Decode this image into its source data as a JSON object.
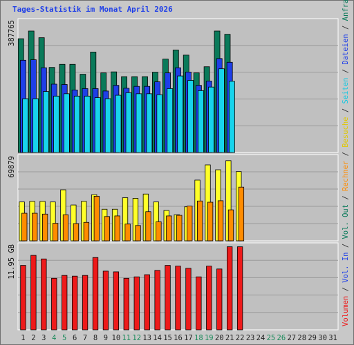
{
  "chart_data": {
    "type": "bar",
    "title": "Tages-Statistik im Monat April 2026",
    "days": [
      "1",
      "2",
      "3",
      "4",
      "5",
      "6",
      "7",
      "8",
      "9",
      "10",
      "11",
      "12",
      "13",
      "14",
      "15",
      "16",
      "17",
      "18",
      "19",
      "20",
      "21",
      "22",
      "23",
      "24",
      "25",
      "26",
      "27",
      "28",
      "29",
      "30",
      "31"
    ],
    "weekend_days": [
      "4",
      "5",
      "11",
      "12",
      "18",
      "19",
      "25",
      "26"
    ],
    "panels": [
      {
        "name": "hits-files-pages",
        "max_label": "387765",
        "ymax": 387765,
        "series": [
          {
            "name": "Anfragen",
            "color": "#0a7a5a",
            "values": [
              333000,
              355500,
              336000,
              249000,
              258000,
              258000,
              229000,
              294000,
              233000,
              236000,
              222000,
              222000,
              222000,
              235000,
              273500,
              300000,
              285000,
              233000,
              251000,
              355500,
              346000,
              null,
              null,
              null,
              null,
              null,
              null,
              null,
              null,
              null,
              null
            ]
          },
          {
            "name": "Dateien",
            "color": "#1f3fe8",
            "values": [
              270000,
              271500,
              248000,
              200000,
              199000,
              183000,
              187000,
              187000,
              180000,
              196500,
              188000,
              193500,
              193500,
              207000,
              233000,
              248000,
              235500,
              196500,
              209000,
              275000,
              264000,
              null,
              null,
              null,
              null,
              null,
              null,
              null,
              null,
              null,
              null
            ]
          },
          {
            "name": "Seiten",
            "color": "#18d4ec",
            "values": [
              157500,
              157500,
              178500,
              165000,
              172000,
              165000,
              165000,
              160500,
              157500,
              167500,
              175000,
              172000,
              172000,
              169000,
              187000,
              224000,
              211000,
              181000,
              191500,
              245000,
              208500,
              null,
              null,
              null,
              null,
              null,
              null,
              null,
              null,
              null,
              null
            ]
          }
        ]
      },
      {
        "name": "visits-sites",
        "max_label": "69879",
        "ymax": 69879,
        "series": [
          {
            "name": "Besuche",
            "color": "#ffff2a",
            "values": [
              32000,
              32500,
              32500,
              32000,
              42000,
              29500,
              32500,
              38000,
              26000,
              26000,
              35500,
              35000,
              38500,
              32000,
              25000,
              21500,
              28000,
              50000,
              62500,
              58500,
              66000,
              57000,
              null,
              null,
              null,
              null,
              null,
              null,
              null,
              null,
              null
            ]
          },
          {
            "name": "Rechner",
            "color": "#ff8c00",
            "values": [
              22700,
              22700,
              22000,
              14400,
              21500,
              14200,
              15200,
              36700,
              20000,
              20500,
              13800,
              12600,
              24000,
              15700,
              20500,
              21000,
              28600,
              32800,
              31800,
              33000,
              25500,
              44200,
              null,
              null,
              null,
              null,
              null,
              null,
              null,
              null,
              null
            ]
          }
        ]
      },
      {
        "name": "volume",
        "max_label": "11.95 GB",
        "ymax": 11.95,
        "series": [
          {
            "name": "Volumen",
            "color": "#ee1a1a",
            "values": [
              9.0,
              10.4,
              9.9,
              7.2,
              7.6,
              7.5,
              7.6,
              10.1,
              8.2,
              8.1,
              7.2,
              7.4,
              7.7,
              8.3,
              9.0,
              8.9,
              8.6,
              7.4,
              8.9,
              8.5,
              11.6,
              11.6,
              null,
              null,
              null,
              null,
              null,
              null,
              null,
              null,
              null
            ]
          }
        ]
      }
    ],
    "right_legend": [
      {
        "text": "Volumen",
        "color": "#ee1a1a"
      },
      {
        "text": " / ",
        "color": "#333333"
      },
      {
        "text": "Vol. In",
        "color": "#1f3fe8"
      },
      {
        "text": " / ",
        "color": "#333333"
      },
      {
        "text": "Vol. Out",
        "color": "#0a7a5a"
      },
      {
        "text": " / ",
        "color": "#333333"
      },
      {
        "text": "Rechner",
        "color": "#ff8c00"
      },
      {
        "text": " / ",
        "color": "#333333"
      },
      {
        "text": "Besuche",
        "color": "#e0c800"
      },
      {
        "text": " / ",
        "color": "#333333"
      },
      {
        "text": "Seiten",
        "color": "#18c8e0"
      },
      {
        "text": " / ",
        "color": "#333333"
      },
      {
        "text": "Dateien",
        "color": "#1f3fe8"
      },
      {
        "text": " / ",
        "color": "#333333"
      },
      {
        "text": "Anfragen",
        "color": "#0a7a5a"
      }
    ],
    "colors": {
      "title": "#1f3fe8",
      "weekday": "#222222",
      "weekend": "#1a8a5a",
      "panel_bg": "#c0c0c0",
      "frame_bg": "#c8c8c8"
    }
  }
}
